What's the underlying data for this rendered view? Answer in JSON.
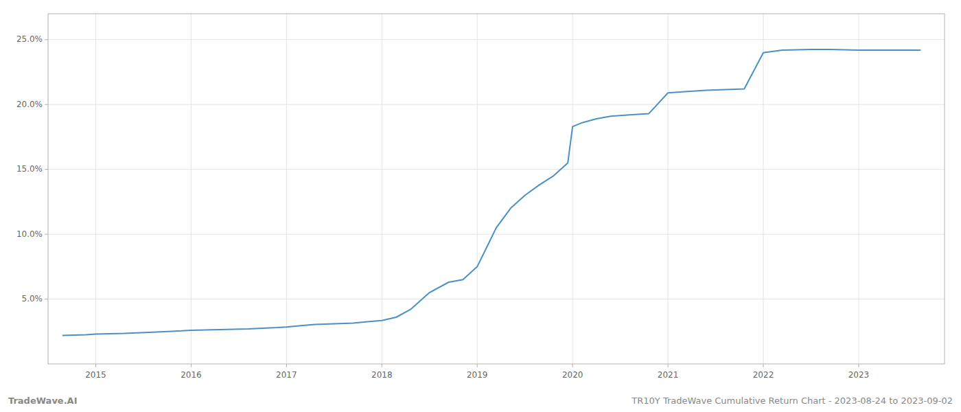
{
  "chart_data": {
    "type": "line",
    "title": "TR10Y TradeWave Cumulative Return Chart - 2023-08-24 to 2023-09-02",
    "annotations": [
      "TradeWave.AI"
    ],
    "color": "#4a90c4",
    "grid": true,
    "x": [
      2014.65,
      2014.9,
      2015.0,
      2015.3,
      2015.6,
      2015.9,
      2016.0,
      2016.3,
      2016.6,
      2016.9,
      2017.0,
      2017.15,
      2017.3,
      2017.5,
      2017.7,
      2017.85,
      2018.0,
      2018.15,
      2018.3,
      2018.5,
      2018.7,
      2018.85,
      2019.0,
      2019.1,
      2019.2,
      2019.35,
      2019.5,
      2019.65,
      2019.8,
      2019.95,
      2020.0,
      2020.1,
      2020.25,
      2020.4,
      2020.6,
      2020.8,
      2021.0,
      2021.2,
      2021.4,
      2021.6,
      2021.8,
      2022.0,
      2022.2,
      2022.5,
      2022.7,
      2023.0,
      2023.65
    ],
    "values": [
      2.2,
      2.25,
      2.3,
      2.35,
      2.45,
      2.55,
      2.6,
      2.65,
      2.7,
      2.8,
      2.85,
      2.95,
      3.05,
      3.1,
      3.15,
      3.25,
      3.35,
      3.6,
      4.2,
      5.5,
      6.3,
      6.5,
      7.5,
      9.0,
      10.5,
      12.0,
      13.0,
      13.8,
      14.5,
      15.5,
      18.3,
      18.6,
      18.9,
      19.1,
      19.2,
      19.3,
      20.9,
      21.0,
      21.1,
      21.15,
      21.2,
      24.0,
      24.2,
      24.25,
      24.25,
      24.2,
      24.2
    ],
    "xlim": [
      2014.5,
      2023.9
    ],
    "xticks": [
      2015,
      2016,
      2017,
      2018,
      2019,
      2020,
      2021,
      2022,
      2023
    ],
    "ylim": [
      0,
      27
    ],
    "yticks": [
      {
        "value": 5.0,
        "label": "5.0%"
      },
      {
        "value": 10.0,
        "label": "10.0%"
      },
      {
        "value": 15.0,
        "label": "15.0%"
      },
      {
        "value": 20.0,
        "label": "20.0%"
      },
      {
        "value": 25.0,
        "label": "25.0%"
      }
    ]
  }
}
